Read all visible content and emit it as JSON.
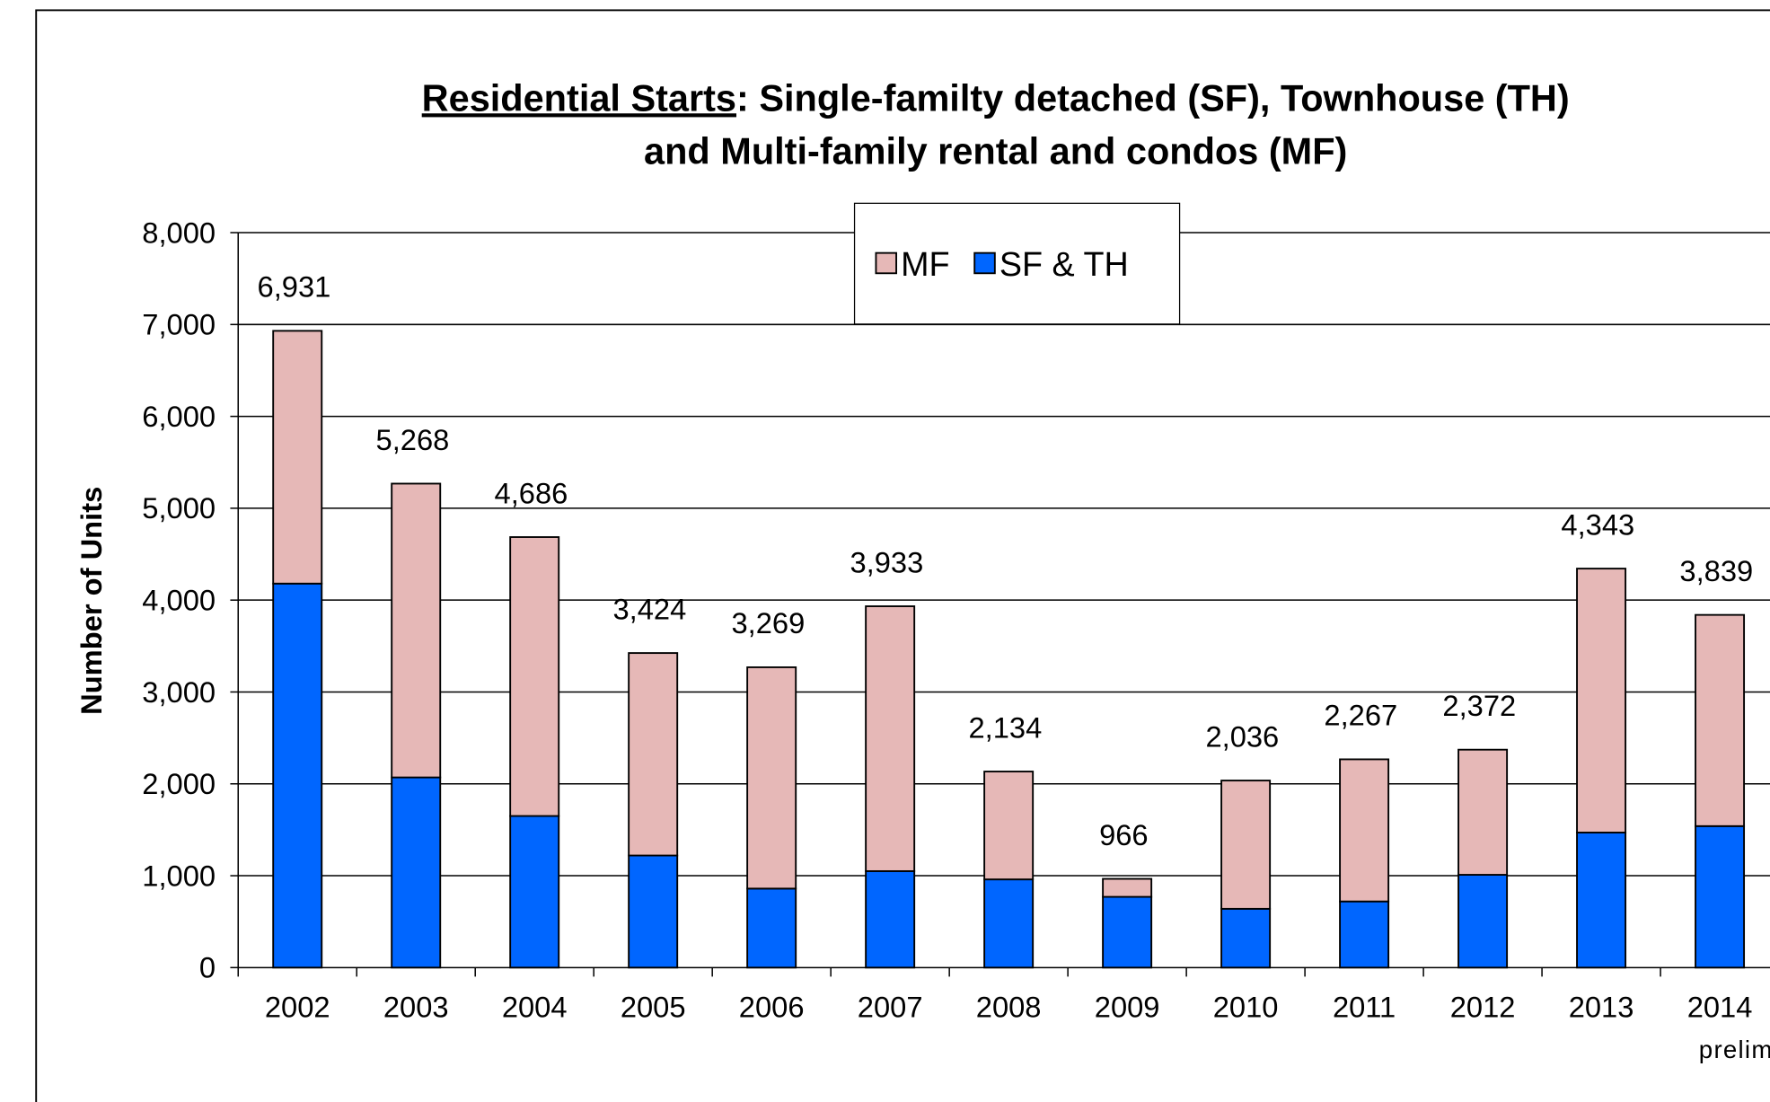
{
  "chart_data": {
    "type": "stacked_bar",
    "title_underlined": "Residential Starts",
    "title_rest": ":  Single-familty detached (SF), Townhouse (TH)",
    "title_line2": "and Multi-family rental and condos (MF)",
    "y_label": "Number of Units",
    "categories": [
      "2002",
      "2003",
      "2004",
      "2005",
      "2006",
      "2007",
      "2008",
      "2009",
      "2010",
      "2011",
      "2012",
      "2013",
      "2014"
    ],
    "category_note": "prelim.",
    "series": [
      {
        "name": "SF & TH",
        "color": "#0066ff",
        "values": [
          4180,
          2070,
          1650,
          1220,
          860,
          1050,
          960,
          770,
          640,
          720,
          1010,
          1470,
          1540
        ]
      },
      {
        "name": "MF",
        "color": "#e6b8b7",
        "values": [
          2751,
          3198,
          3036,
          2204,
          2409,
          2883,
          1174,
          196,
          1396,
          1547,
          1362,
          2873,
          2299
        ]
      }
    ],
    "total_labels": [
      "6,931",
      "5,268",
      "4,686",
      "3,424",
      "3,269",
      "3,933",
      "2,134",
      "966",
      "2,036",
      "2,267",
      "2,372",
      "4,343",
      "3,839"
    ],
    "legend_order": [
      1,
      0
    ],
    "ylim": [
      0,
      8000
    ],
    "yticks": [
      0,
      {
        "value": 1000,
        "label": "1,000"
      },
      {
        "value": 2000,
        "label": "2,000"
      },
      {
        "value": 3000,
        "label": "3,000"
      },
      {
        "value": 4000,
        "label": "4,000"
      },
      {
        "value": 5000,
        "label": "5,000"
      },
      {
        "value": 6000,
        "label": "6,000"
      },
      {
        "value": 7000,
        "label": "7,000"
      },
      {
        "value": 8000,
        "label": "8,000"
      }
    ],
    "grid": true
  }
}
